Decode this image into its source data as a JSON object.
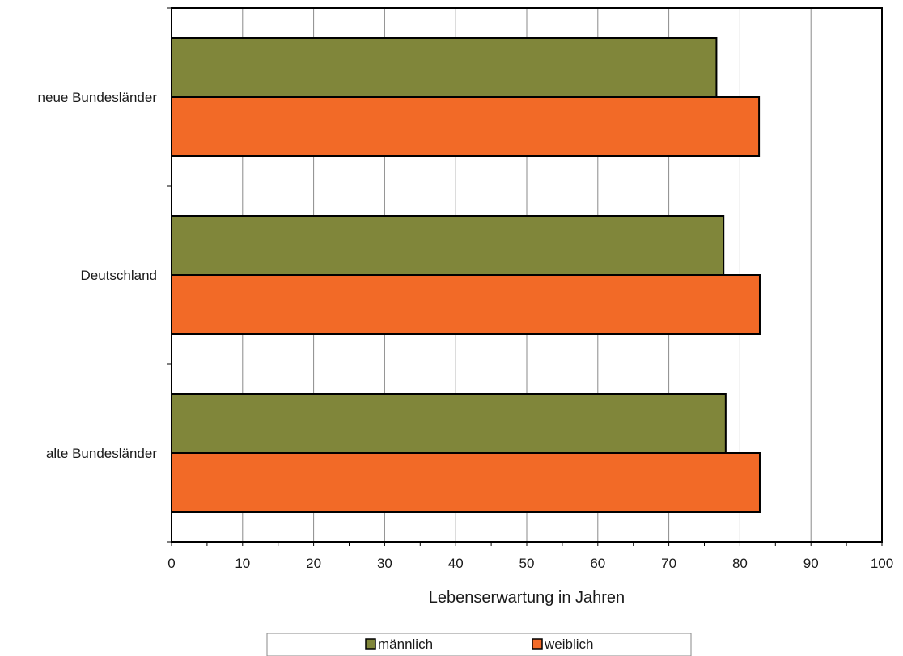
{
  "chart_data": {
    "type": "bar",
    "orientation": "horizontal",
    "categories": [
      "neue Bundesländer",
      "Deutschland",
      "alte Bundesländer"
    ],
    "series": [
      {
        "name": "männlich",
        "values": [
          76.7,
          77.7,
          78.0
        ],
        "color": "#80863A"
      },
      {
        "name": "weiblich",
        "values": [
          82.7,
          82.8,
          82.8
        ],
        "color": "#F26A27"
      }
    ],
    "xlabel": "Lebenserwartung in Jahren",
    "ylabel": "",
    "xlim": [
      0,
      100
    ],
    "xticks": [
      0,
      10,
      20,
      30,
      40,
      50,
      60,
      70,
      80,
      90,
      100
    ],
    "grid": "vertical",
    "legend_position": "bottom"
  }
}
